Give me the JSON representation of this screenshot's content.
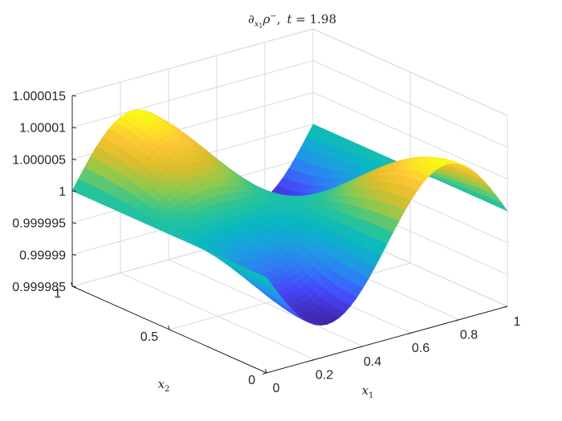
{
  "chart_data": {
    "type": "surface",
    "title": {
      "lead": "∂",
      "sub_var": "x",
      "sub_idx": "1",
      "rho": "ρ",
      "sup": "−",
      "sep": ",",
      "t_var": "t",
      "t_text": " = 1.98"
    },
    "xlabel": {
      "var": "x",
      "sub": "1"
    },
    "ylabel": {
      "var": "x",
      "sub": "2"
    },
    "xlim": [
      0,
      1
    ],
    "ylim": [
      0,
      1
    ],
    "zlim": [
      0.999985,
      1.000015
    ],
    "xticks": [
      0,
      0.2,
      0.4,
      0.6,
      0.8,
      1
    ],
    "xtick_labels": [
      "0",
      "0.2",
      "0.4",
      "0.6",
      "0.8",
      "1"
    ],
    "yticks": [
      0,
      0.5,
      1
    ],
    "ytick_labels": [
      "0",
      "0.5",
      "1"
    ],
    "zticks": [
      0.999985,
      0.99999,
      0.999995,
      1,
      1.000005,
      1.00001,
      1.000015
    ],
    "ztick_labels": [
      "0.999985",
      "0.99999",
      "0.999995",
      "1",
      "1.000005",
      "1.00001",
      "1.000015"
    ],
    "grid": true,
    "colormap": "parula",
    "colormap_stops": [
      "#3e26a8",
      "#4745f8",
      "#2f7bf6",
      "#1b9fdf",
      "#08b8c1",
      "#2dc594",
      "#8ec94f",
      "#dcbd2b",
      "#fec737",
      "#f9fb14"
    ],
    "surface": {
      "baseline": 1,
      "amplitude": 1e-05,
      "peaks": [
        {
          "x1": 0.25,
          "x2": 1,
          "amp": 1e-05
        },
        {
          "x1": 0.75,
          "x2": 0,
          "amp": 1e-05
        }
      ],
      "troughs": [
        {
          "x1": 0.25,
          "x2": 0,
          "amp": -1e-05
        },
        {
          "x1": 0.75,
          "x2": 1,
          "amp": -1e-05
        }
      ]
    }
  }
}
